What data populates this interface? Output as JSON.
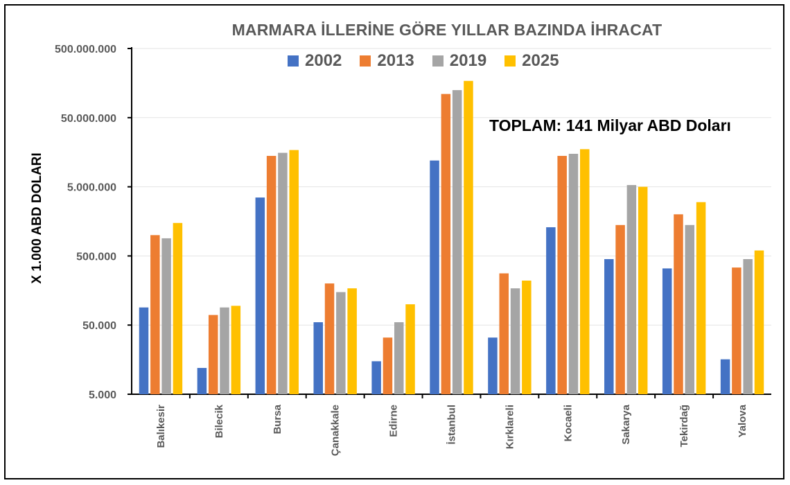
{
  "chart_data": {
    "type": "bar",
    "title": "MARMARA İLLERİNE GÖRE YILLAR  BAZINDA İHRACAT",
    "ylabel": "X 1.000 ABD DOLARI",
    "xlabel": "",
    "yscale": "log",
    "ylim": [
      5000,
      500000000
    ],
    "yticks": [
      5000,
      50000,
      500000,
      5000000,
      50000000,
      500000000
    ],
    "ytick_labels": [
      "5.000",
      "50.000",
      "500.000",
      "5.000.000",
      "50.000.000",
      "500.000.000"
    ],
    "legend_position": "top",
    "grid": true,
    "annotation": "TOPLAM: 141 Milyar ABD Doları",
    "categories": [
      "Balıkesir",
      "Bilecik",
      "Bursa",
      "Çanakkale",
      "Edirne",
      "İstanbul",
      "Kırklareli",
      "Kocaeli",
      "Sakarya",
      "Tekirdağ",
      "Yalova"
    ],
    "series": [
      {
        "name": "2002",
        "color": "#4472C4",
        "values": [
          90000,
          12000,
          3500000,
          55000,
          15000,
          12000000,
          33000,
          1300000,
          450000,
          330000,
          16000
        ]
      },
      {
        "name": "2013",
        "color": "#ED7D31",
        "values": [
          1000000,
          70000,
          14000000,
          200000,
          33000,
          110000000,
          280000,
          14000000,
          1400000,
          2000000,
          340000
        ]
      },
      {
        "name": "2019",
        "color": "#A5A5A5",
        "values": [
          900000,
          90000,
          15500000,
          150000,
          55000,
          125000000,
          170000,
          15000000,
          5300000,
          1400000,
          450000
        ]
      },
      {
        "name": "2025",
        "color": "#FFC000",
        "values": [
          1500000,
          95000,
          17000000,
          170000,
          100000,
          170000000,
          220000,
          17500000,
          5000000,
          3000000,
          600000
        ]
      }
    ]
  }
}
